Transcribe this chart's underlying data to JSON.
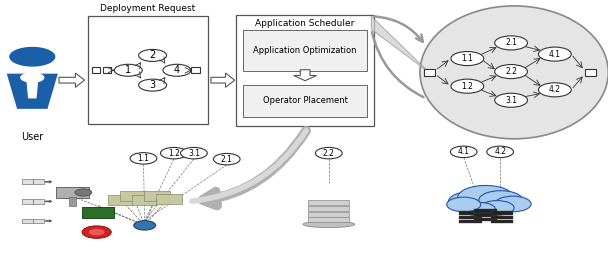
{
  "bg_color": "#ffffff",
  "user_label": "User",
  "deployment_request_label": "Deployment Request",
  "app_scheduler_label": "Application Scheduler",
  "app_opt_label": "Application Optimization",
  "op_place_label": "Operator Placement",
  "blue_fill": "#1a5fa8",
  "node_edge_color": "#333333"
}
